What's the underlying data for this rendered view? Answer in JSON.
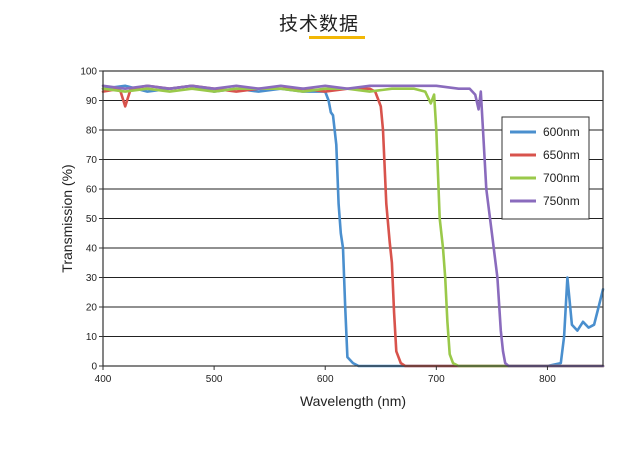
{
  "page": {
    "title": "技术数据"
  },
  "chart_data": {
    "type": "line",
    "title": "",
    "xlabel": "Wavelength (nm)",
    "ylabel": "Transmission (%)",
    "xlim": [
      400,
      850
    ],
    "ylim": [
      0,
      100
    ],
    "x_ticks": [
      400,
      500,
      600,
      700,
      800
    ],
    "y_ticks": [
      0,
      10,
      20,
      30,
      40,
      50,
      60,
      70,
      80,
      90,
      100
    ],
    "grid": "horizontal",
    "legend": "top-right",
    "series": [
      {
        "name": "600nm",
        "color": "#4a8fce",
        "x": [
          400,
          420,
          440,
          460,
          480,
          500,
          520,
          540,
          560,
          580,
          600,
          603,
          605,
          607,
          610,
          612,
          614,
          616,
          618,
          620,
          625,
          630,
          650,
          700,
          750,
          800,
          812,
          815,
          818,
          822,
          827,
          832,
          837,
          842,
          846,
          850
        ],
        "y": [
          94,
          95,
          93,
          94,
          95,
          93,
          94,
          93,
          94,
          93,
          93,
          90,
          86,
          85,
          75,
          55,
          45,
          40,
          20,
          3,
          1,
          0,
          0,
          0,
          0,
          0,
          1,
          10,
          30,
          14,
          12,
          15,
          13,
          14,
          20,
          26
        ]
      },
      {
        "name": "650nm",
        "color": "#d8534c",
        "x": [
          400,
          415,
          420,
          425,
          440,
          460,
          480,
          500,
          520,
          540,
          560,
          580,
          600,
          620,
          640,
          645,
          648,
          650,
          652,
          655,
          658,
          660,
          662,
          664,
          668,
          672,
          680,
          700,
          750,
          800,
          850
        ],
        "y": [
          93,
          94,
          88,
          94,
          95,
          94,
          95,
          94,
          93,
          94,
          94,
          94,
          93,
          94,
          94,
          93,
          90,
          88,
          80,
          55,
          42,
          35,
          18,
          5,
          1,
          0,
          0,
          0,
          0,
          0,
          0
        ]
      },
      {
        "name": "700nm",
        "color": "#9ac94a",
        "x": [
          400,
          420,
          440,
          460,
          480,
          500,
          520,
          540,
          560,
          580,
          600,
          620,
          640,
          660,
          680,
          690,
          695,
          698,
          700,
          703,
          706,
          708,
          710,
          712,
          715,
          720,
          730,
          750,
          800,
          850
        ],
        "y": [
          94,
          93,
          94,
          93,
          94,
          93,
          94,
          94,
          94,
          93,
          94,
          94,
          93,
          94,
          94,
          93,
          89,
          92,
          80,
          50,
          40,
          30,
          15,
          4,
          1,
          0,
          0,
          0,
          0,
          0
        ]
      },
      {
        "name": "750nm",
        "color": "#8a6bbd",
        "x": [
          400,
          420,
          440,
          460,
          480,
          500,
          520,
          540,
          560,
          580,
          600,
          620,
          640,
          660,
          680,
          700,
          720,
          730,
          735,
          738,
          740,
          742,
          745,
          750,
          755,
          758,
          760,
          762,
          765,
          770,
          780,
          800,
          850
        ],
        "y": [
          95,
          94,
          95,
          94,
          95,
          94,
          95,
          94,
          95,
          94,
          95,
          94,
          95,
          95,
          95,
          95,
          94,
          94,
          92,
          87,
          93,
          80,
          60,
          45,
          30,
          12,
          5,
          1,
          0,
          0,
          0,
          0,
          0
        ]
      }
    ]
  }
}
